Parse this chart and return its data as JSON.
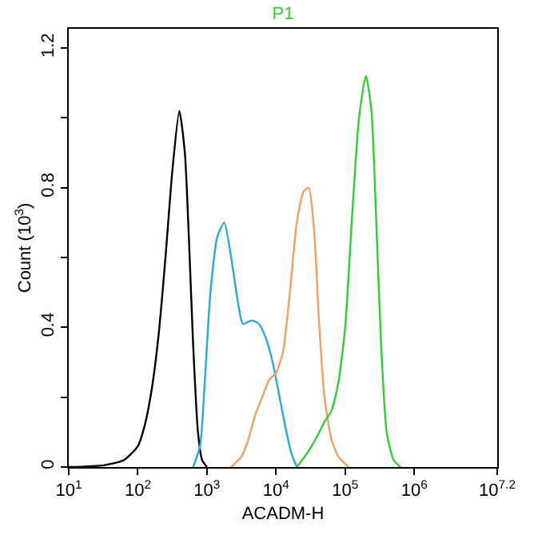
{
  "chart_data": {
    "type": "line",
    "title": "P1",
    "xlabel": "ACADM-H",
    "ylabel": "Count (10$^{3}$)",
    "log": "x",
    "xlim": [
      10,
      15848932
    ],
    "ylim": [
      0,
      1.255
    ],
    "xticks": [
      {
        "value": 10,
        "label": "10$^{1}$"
      },
      {
        "value": 100,
        "label": "10$^{2}$"
      },
      {
        "value": 1000,
        "label": "10$^{3}$"
      },
      {
        "value": 10000,
        "label": "10$^{4}$"
      },
      {
        "value": 100000,
        "label": "10$^{5}$"
      },
      {
        "value": 1000000,
        "label": "10$^{6}$"
      },
      {
        "value": 15848932,
        "label": "10$^{7.2}$"
      }
    ],
    "yticks": [
      0,
      {
        "value": 0.2,
        "label": null
      },
      0.4,
      {
        "value": 0.6,
        "label": null
      },
      0.8,
      {
        "value": 1.0,
        "label": null
      },
      1.2
    ],
    "series": [
      {
        "color": "#000000",
        "x": [
          10,
          32,
          63,
          100,
          126,
          158,
          200,
          251,
          316,
          398,
          479,
          562,
          631,
          741,
          851,
          1000
        ],
        "values": [
          0,
          0.005,
          0.02,
          0.06,
          0.12,
          0.22,
          0.38,
          0.6,
          0.85,
          1.02,
          0.9,
          0.6,
          0.35,
          0.1,
          0.02,
          0
        ]
      },
      {
        "color": "#29a9d8",
        "x": [
          631,
          794,
          933,
          1122,
          1413,
          1778,
          2239,
          2818,
          3311,
          4467,
          5623,
          7079,
          8913,
          11220,
          14125,
          16596,
          19953
        ],
        "values": [
          0,
          0.06,
          0.25,
          0.5,
          0.66,
          0.7,
          0.6,
          0.47,
          0.41,
          0.42,
          0.41,
          0.37,
          0.3,
          0.2,
          0.1,
          0.04,
          0
        ]
      },
      {
        "color": "#f0a060",
        "x": [
          2239,
          3162,
          3981,
          5012,
          6310,
          7943,
          10000,
          12589,
          15849,
          19953,
          25119,
          29512,
          35481,
          41687,
          50119,
          63096,
          79433,
          112202
        ],
        "values": [
          0,
          0.03,
          0.08,
          0.15,
          0.2,
          0.25,
          0.27,
          0.33,
          0.5,
          0.7,
          0.79,
          0.8,
          0.68,
          0.42,
          0.2,
          0.08,
          0.03,
          0
        ]
      },
      {
        "color": "#33cc33",
        "x": [
          19953,
          28184,
          39811,
          50119,
          63096,
          79433,
          100000,
          125893,
          158489,
          199526,
          239883,
          281838,
          331131,
          398107,
          501187,
          630957
        ],
        "values": [
          0,
          0.04,
          0.09,
          0.13,
          0.16,
          0.24,
          0.4,
          0.72,
          1.0,
          1.12,
          1.02,
          0.7,
          0.35,
          0.1,
          0.02,
          0
        ]
      }
    ]
  }
}
